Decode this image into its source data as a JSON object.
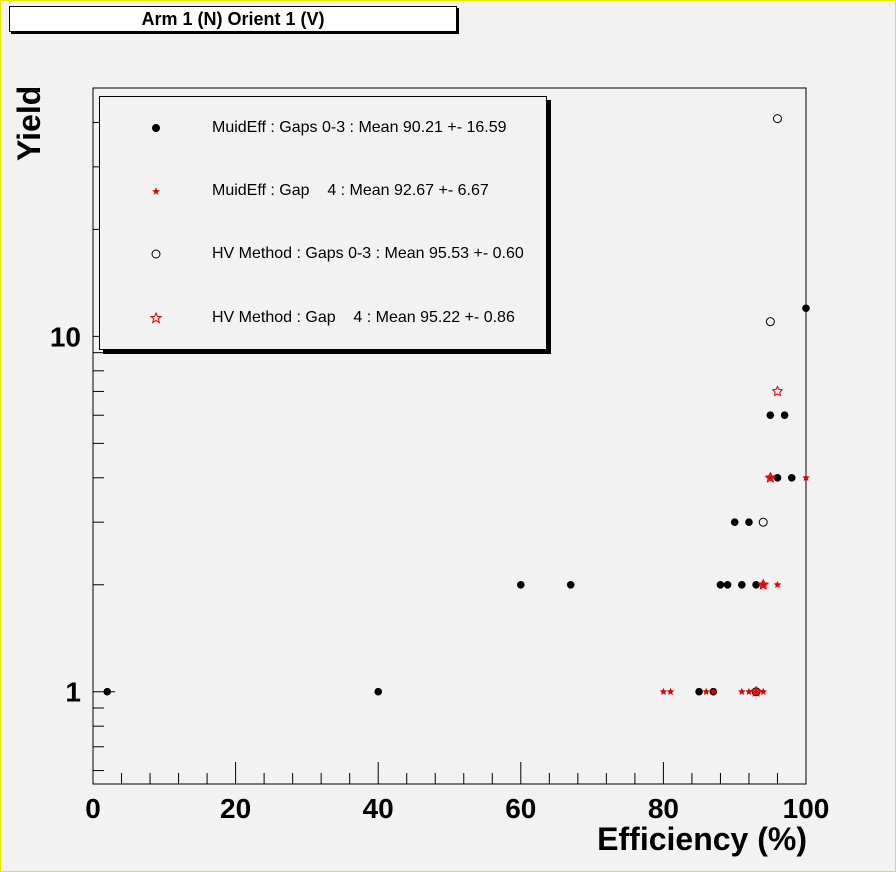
{
  "canvas": {
    "title": "Arm 1 (N) Orient 1 (V)"
  },
  "chart_data": {
    "type": "scatter",
    "title": "Arm 1 (N) Orient 1 (V)",
    "xlabel": "Efficiency (%)",
    "ylabel": "Yield",
    "xlim": [
      0,
      100
    ],
    "ylim": [
      0.55,
      50
    ],
    "yscale": "log",
    "x_tick_labels": [
      "0",
      "20",
      "40",
      "60",
      "80",
      "100"
    ],
    "y_tick_labels": [
      "1",
      "10"
    ],
    "legend_position": "top-left",
    "grid": false,
    "series": [
      {
        "name": "MuidEff : Gaps 0-3 : Mean 90.21 +- 16.59",
        "marker": "filled-circle",
        "color": "#000000",
        "x": [
          2,
          40,
          60,
          67,
          85,
          87,
          88,
          89,
          90,
          91,
          92,
          93,
          95,
          96,
          97,
          98,
          100
        ],
        "y": [
          1,
          1,
          2,
          2,
          1,
          1,
          2,
          2,
          3,
          2,
          3,
          2,
          6,
          4,
          6,
          4,
          12
        ]
      },
      {
        "name": "MuidEff : Gap    4 : Mean 92.67 +- 6.67",
        "marker": "small-star",
        "color": "#e00000",
        "x": [
          80,
          81,
          86,
          87,
          91,
          92,
          93,
          94,
          94,
          95,
          96,
          100
        ],
        "y": [
          1,
          1,
          1,
          1,
          1,
          1,
          1,
          1,
          2,
          4,
          2,
          4
        ]
      },
      {
        "name": "HV Method : Gaps 0-3 : Mean 95.53 +- 0.60",
        "marker": "open-circle",
        "color": "#000000",
        "x": [
          93,
          94,
          95,
          96
        ],
        "y": [
          1,
          3,
          11,
          41
        ]
      },
      {
        "name": "HV Method : Gap    4 : Mean 95.22 +- 0.86",
        "marker": "open-star",
        "color": "#e00000",
        "x": [
          93,
          94,
          95,
          96
        ],
        "y": [
          1,
          2,
          4,
          7
        ]
      }
    ]
  }
}
